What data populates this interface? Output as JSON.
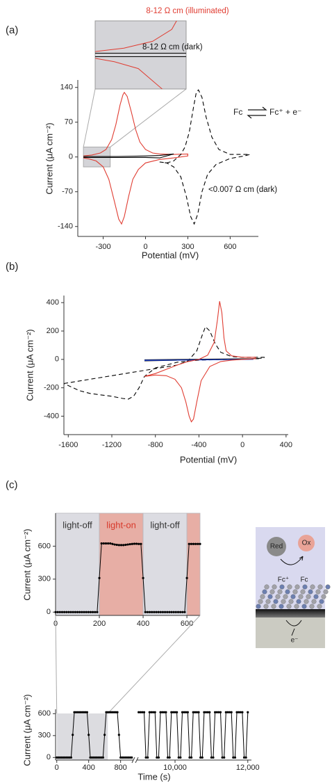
{
  "panel_labels": [
    "(a)",
    "(b)",
    "(c)"
  ],
  "schematic": {
    "labels": [
      "Red",
      "Ox",
      "Fc⁺",
      "Fc",
      "e⁻"
    ]
  },
  "chart_data": [
    {
      "type": "line",
      "xlabel": "Potential (mV)",
      "ylabel": "Current (μA cm⁻²)",
      "xlim": [
        -480,
        800
      ],
      "ylim": [
        -160,
        155
      ],
      "xticks": [
        -300,
        0,
        300,
        600
      ],
      "yticks": [
        -140,
        -70,
        0,
        70,
        140
      ],
      "series": [
        {
          "name": "8-12  Ω cm (illuminated)",
          "color": "#e03c31",
          "x": [
            -440,
            -380,
            -320,
            -280,
            -240,
            -210,
            -180,
            -160,
            -150,
            -130,
            -100,
            -70,
            -40,
            0,
            50,
            100,
            200,
            300,
            300,
            200,
            100,
            0,
            -50,
            -90,
            -120,
            -150,
            -170,
            -190,
            -220,
            -260,
            -300,
            -350,
            -400,
            -440
          ],
          "values": [
            2,
            4,
            8,
            15,
            35,
            65,
            105,
            125,
            130,
            122,
            90,
            55,
            30,
            15,
            8,
            6,
            5,
            6,
            2,
            -2,
            -5,
            -12,
            -25,
            -45,
            -80,
            -120,
            -135,
            -125,
            -90,
            -45,
            -20,
            -8,
            -4,
            -2
          ]
        },
        {
          "name": "8-12  Ω cm (dark)",
          "color": "#000000",
          "x": [
            -440,
            -200,
            0,
            100,
            200,
            100,
            0,
            -200,
            -440
          ],
          "values": [
            1,
            1,
            2,
            3,
            6,
            -2,
            -1,
            -1,
            -1
          ]
        },
        {
          "name": "<0.007 Ω cm (dark)",
          "color": "#000000",
          "dash": true,
          "x": [
            100,
            150,
            200,
            250,
            280,
            310,
            340,
            360,
            375,
            400,
            430,
            470,
            520,
            600,
            700,
            740,
            700,
            600,
            500,
            440,
            400,
            370,
            345,
            320,
            290,
            250,
            200,
            150,
            100
          ],
          "values": [
            -10,
            -12,
            -8,
            5,
            20,
            50,
            100,
            130,
            135,
            120,
            80,
            40,
            15,
            5,
            5,
            5,
            2,
            -3,
            -15,
            -35,
            -70,
            -115,
            -135,
            -120,
            -80,
            -40,
            -20,
            -12,
            -10
          ]
        }
      ],
      "inset": {
        "xlim": [
          -440,
          -250
        ],
        "ylim": [
          -20,
          20
        ]
      },
      "annotations": [
        "Fc",
        "Fc⁺ + e⁻"
      ]
    },
    {
      "type": "line",
      "xlabel": "Potential (mV)",
      "ylabel": "Current (μA cm⁻²)",
      "xlim": [
        -1640,
        420
      ],
      "ylim": [
        -530,
        450
      ],
      "xticks": [
        -1600,
        -1200,
        -800,
        -400,
        0,
        400
      ],
      "yticks": [
        -400,
        -200,
        0,
        200,
        400
      ],
      "series": [
        {
          "color": "#000000",
          "dash": true,
          "x": [
            -1640,
            -1400,
            -1200,
            -1000,
            -800,
            -600,
            -500,
            -420,
            -370,
            -340,
            -300,
            -250,
            -200,
            -100,
            0,
            100,
            200,
            200,
            100,
            0,
            -200,
            -400,
            -600,
            -800,
            -900,
            -950,
            -1000,
            -1050,
            -1100,
            -1200,
            -1300,
            -1400,
            -1500,
            -1640
          ],
          "values": [
            -170,
            -140,
            -115,
            -90,
            -65,
            -40,
            -10,
            60,
            170,
            230,
            200,
            110,
            50,
            20,
            15,
            15,
            15,
            10,
            5,
            0,
            -2,
            -5,
            -20,
            -60,
            -120,
            -200,
            -260,
            -280,
            -275,
            -260,
            -250,
            -240,
            -220,
            -170
          ]
        },
        {
          "color": "#000000",
          "x": [
            -900,
            150,
            -900
          ],
          "values": [
            -3,
            5,
            -10
          ]
        },
        {
          "color": "#2040c0",
          "x": [
            -900,
            100,
            -900
          ],
          "values": [
            -5,
            0,
            -8
          ]
        },
        {
          "color": "#e03c31",
          "x": [
            -900,
            -800,
            -700,
            -600,
            -500,
            -400,
            -320,
            -260,
            -230,
            -210,
            -190,
            -170,
            -150,
            -100,
            0,
            120,
            120,
            0,
            -100,
            -200,
            -300,
            -380,
            -420,
            -450,
            -470,
            -490,
            -520,
            -560,
            -620,
            -700,
            -800,
            -900
          ],
          "values": [
            -120,
            -100,
            -70,
            -40,
            -15,
            0,
            30,
            120,
            280,
            410,
            330,
            150,
            60,
            25,
            15,
            15,
            5,
            0,
            -5,
            -15,
            -50,
            -150,
            -300,
            -420,
            -440,
            -400,
            -300,
            -200,
            -140,
            -115,
            -110,
            -120
          ]
        }
      ]
    },
    {
      "type": "line",
      "ylabel": "Current (μA cm⁻²)",
      "markers": true,
      "xlim": [
        0,
        660
      ],
      "ylim": [
        -30,
        900
      ],
      "xticks": [
        0,
        200,
        400,
        600
      ],
      "yticks": [
        0,
        300,
        600
      ],
      "bands": [
        {
          "start": 0,
          "end": 200,
          "label": "light-off",
          "color": "#dcdce2",
          "text_color": "#333333"
        },
        {
          "start": 200,
          "end": 400,
          "label": "light-on",
          "color": "#e7aea5",
          "text_color": "#d8392b"
        },
        {
          "start": 400,
          "end": 600,
          "label": "light-off",
          "color": "#dcdce2",
          "text_color": "#333333"
        },
        {
          "start": 600,
          "end": 660,
          "color": "#e7aea5"
        }
      ],
      "series": [
        {
          "color": "#000000",
          "x": [
            0,
            10,
            20,
            30,
            40,
            50,
            60,
            70,
            80,
            90,
            100,
            110,
            120,
            130,
            140,
            150,
            160,
            170,
            180,
            190,
            200,
            210,
            220,
            230,
            240,
            250,
            260,
            270,
            280,
            290,
            300,
            310,
            320,
            330,
            340,
            350,
            360,
            370,
            380,
            390,
            400,
            410,
            420,
            430,
            440,
            450,
            460,
            470,
            480,
            490,
            500,
            510,
            520,
            530,
            540,
            550,
            560,
            570,
            580,
            590,
            600,
            610,
            620,
            630,
            640,
            650,
            660
          ],
          "values": [
            0,
            0,
            0,
            0,
            0,
            0,
            0,
            0,
            0,
            0,
            0,
            0,
            0,
            0,
            0,
            0,
            0,
            0,
            0,
            0,
            310,
            625,
            625,
            625,
            625,
            625,
            620,
            615,
            612,
            610,
            610,
            610,
            612,
            615,
            618,
            620,
            622,
            622,
            620,
            620,
            310,
            0,
            0,
            0,
            0,
            0,
            0,
            0,
            0,
            0,
            0,
            0,
            0,
            0,
            0,
            0,
            0,
            0,
            0,
            0,
            310,
            620,
            620,
            620,
            620,
            620,
            620
          ]
        }
      ]
    },
    {
      "type": "line",
      "xlabel": "Time (s)",
      "ylabel": "Current (μA cm⁻²)",
      "markers": true,
      "xlim_segments": [
        [
          -15,
          960
        ],
        [
          8950,
          12100
        ]
      ],
      "ylim": [
        -35,
        660
      ],
      "xticks": [
        0,
        400,
        800,
        {
          "value": 10000,
          "label": "10,000"
        },
        {
          "value": 12000,
          "label": "12,000"
        }
      ],
      "yticks": [
        0,
        300,
        600
      ],
      "highlight": [
        0,
        640
      ],
      "series": [
        {
          "color": "#000000",
          "x": [
            0,
            20,
            40,
            60,
            80,
            100,
            120,
            140,
            160,
            180,
            200,
            220,
            240,
            260,
            280,
            300,
            320,
            340,
            360,
            380,
            400,
            420,
            440,
            460,
            480,
            500,
            520,
            540,
            560,
            580,
            600,
            620,
            640,
            660,
            680,
            700,
            720,
            740,
            760,
            780,
            800,
            820,
            840,
            860,
            880,
            900,
            920,
            940
          ],
          "values": [
            0,
            0,
            0,
            0,
            0,
            0,
            0,
            0,
            0,
            0,
            310,
            620,
            620,
            620,
            620,
            620,
            620,
            620,
            620,
            620,
            310,
            0,
            0,
            0,
            0,
            0,
            0,
            0,
            0,
            0,
            310,
            620,
            620,
            620,
            620,
            620,
            620,
            620,
            620,
            310,
            0,
            0,
            0,
            0,
            0,
            0,
            0,
            0
          ]
        },
        {
          "color": "#000000",
          "x": [
            9000,
            9050,
            9100,
            9150,
            9200,
            9250,
            9300,
            9350,
            9400,
            9450,
            9500,
            9550,
            9600,
            9650,
            9700,
            9750,
            9800,
            9850,
            9900,
            9950,
            10000,
            10050,
            10100,
            10150,
            10200,
            10250,
            10300,
            10350,
            10400,
            10450,
            10500,
            10550,
            10600,
            10650,
            10700,
            10750,
            10800,
            10850,
            10900,
            10950,
            11000,
            11050,
            11100,
            11150,
            11200,
            11250,
            11300,
            11350,
            11400,
            11450,
            11500,
            11550,
            11600,
            11650,
            11700,
            11750,
            11800,
            11850,
            11900,
            11950,
            12000
          ],
          "values": [
            620,
            620,
            620,
            620,
            0,
            0,
            620,
            620,
            620,
            620,
            0,
            0,
            620,
            620,
            620,
            620,
            0,
            0,
            620,
            620,
            620,
            620,
            0,
            0,
            620,
            620,
            620,
            620,
            0,
            0,
            620,
            620,
            620,
            620,
            0,
            0,
            620,
            620,
            620,
            620,
            0,
            0,
            620,
            620,
            620,
            620,
            0,
            0,
            620,
            620,
            620,
            620,
            0,
            0,
            620,
            620,
            620,
            620,
            0,
            0,
            620
          ]
        }
      ]
    }
  ]
}
